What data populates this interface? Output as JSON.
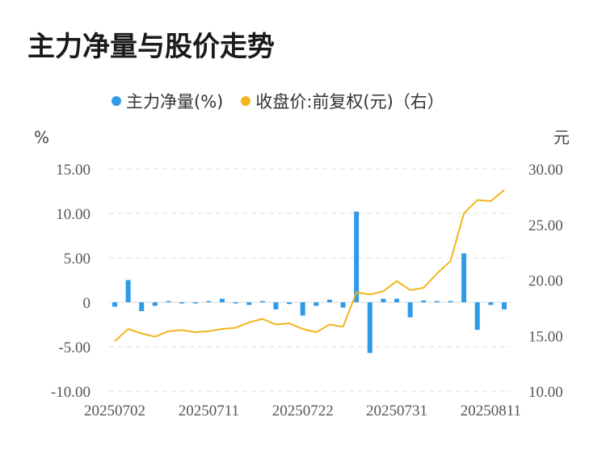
{
  "title": "主力净量与股价走势",
  "legend": {
    "series1": "主力净量(%)",
    "series2": "收盘价:前复权(元)（右）"
  },
  "colors": {
    "bar": "#2f9be8",
    "line": "#f2b51c",
    "grid": "#dddddd"
  },
  "chart_data": {
    "type": "bar+line",
    "y_left_unit": "%",
    "y_right_unit": "元",
    "y_left_ticks": [
      "15.00",
      "10.00",
      "5.00",
      "0",
      "-5.00",
      "-10.00"
    ],
    "y_right_ticks": [
      "30.00",
      "25.00",
      "20.00",
      "15.00",
      "10.00"
    ],
    "x_tick_labels": [
      "20250702",
      "20250711",
      "20250722",
      "20250731",
      "20250811"
    ],
    "ylim_left": [
      -10,
      15
    ],
    "ylim_right": [
      10,
      30
    ],
    "series": [
      {
        "name": "主力净量(%)",
        "type": "bar",
        "values": [
          -0.5,
          2.5,
          -1.0,
          -0.4,
          0.1,
          -0.1,
          -0.1,
          0.1,
          0.4,
          -0.1,
          -0.3,
          0.0,
          -0.8,
          -0.2,
          -1.5,
          -0.4,
          0.3,
          -0.6,
          10.2,
          -5.7,
          0.4,
          0.4,
          -1.7,
          0.2,
          0.1,
          0.0,
          5.5,
          -3.1,
          -0.3,
          -0.8
        ]
      },
      {
        "name": "收盘价:前复权(元)（右）",
        "type": "line",
        "values": [
          14.5,
          15.6,
          15.2,
          14.9,
          15.4,
          15.5,
          15.3,
          15.4,
          15.6,
          15.7,
          16.2,
          16.5,
          16.0,
          16.1,
          15.6,
          15.3,
          16.0,
          15.8,
          18.9,
          18.7,
          19.0,
          19.9,
          19.1,
          19.3,
          20.6,
          21.7,
          26.0,
          27.2,
          27.1,
          28.1
        ]
      }
    ]
  }
}
